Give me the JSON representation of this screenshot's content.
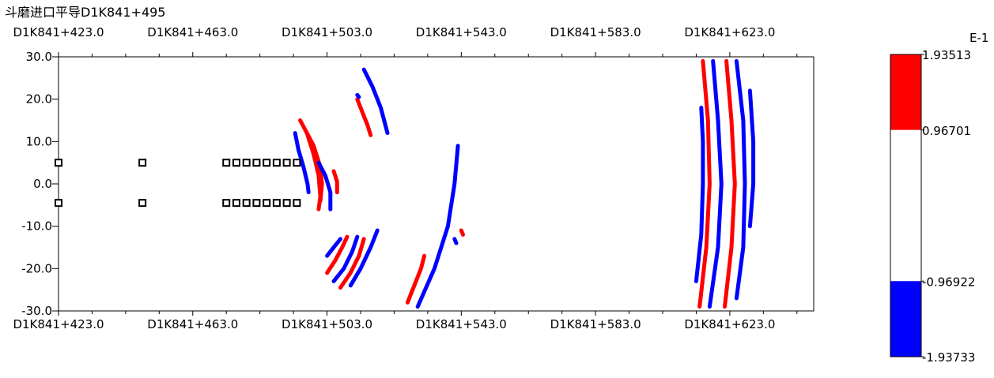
{
  "chart_data": {
    "type": "heatmap",
    "title": "斗磨进口平导D1K841+495",
    "x_tick_labels": [
      "D1K841+423.0",
      "D1K841+463.0",
      "D1K841+503.0",
      "D1K841+543.0",
      "D1K841+583.0",
      "D1K841+623.0"
    ],
    "x_ticks": [
      423,
      463,
      503,
      543,
      583,
      623
    ],
    "xlim": [
      423,
      648
    ],
    "y_ticks": [
      30,
      20,
      10,
      0,
      -10,
      -20,
      -30
    ],
    "y_tick_labels": [
      "30.0",
      "20.0",
      "10.0",
      "0.0",
      "-10.0",
      "-20.0",
      "-30.0"
    ],
    "ylim": [
      -30,
      30
    ],
    "colorbar": {
      "exponent_label": "E-1",
      "labels": [
        "1.93513",
        "0.96701",
        "-0.96922",
        "-1.93733"
      ],
      "segments": [
        {
          "from": 0.96701,
          "to": 1.93513,
          "color": "#ff0000"
        },
        {
          "from": -0.96922,
          "to": 0.96701,
          "color": "#ffffff"
        },
        {
          "from": -1.93733,
          "to": -0.96922,
          "color": "#0000ff"
        }
      ]
    },
    "colors": {
      "positive": "#ff0000",
      "negative": "#0000ff",
      "marker": "#000000"
    },
    "markers": [
      {
        "x": 423,
        "y": 5
      },
      {
        "x": 423,
        "y": -4.5
      },
      {
        "x": 448,
        "y": 5
      },
      {
        "x": 448,
        "y": -4.5
      },
      {
        "x": 473,
        "y": 5
      },
      {
        "x": 476,
        "y": 5
      },
      {
        "x": 479,
        "y": 5
      },
      {
        "x": 482,
        "y": 5
      },
      {
        "x": 485,
        "y": 5
      },
      {
        "x": 488,
        "y": 5
      },
      {
        "x": 491,
        "y": 5
      },
      {
        "x": 494,
        "y": 5
      },
      {
        "x": 473,
        "y": -4.5
      },
      {
        "x": 476,
        "y": -4.5
      },
      {
        "x": 479,
        "y": -4.5
      },
      {
        "x": 482,
        "y": -4.5
      },
      {
        "x": 485,
        "y": -4.5
      },
      {
        "x": 488,
        "y": -4.5
      },
      {
        "x": 491,
        "y": -4.5
      },
      {
        "x": 494,
        "y": -4.5
      }
    ],
    "arcs": [
      {
        "color": "#0000ff",
        "points": [
          [
            493.5,
            12
          ],
          [
            494.5,
            8
          ],
          [
            496,
            4
          ],
          [
            497.2,
            0
          ],
          [
            497.5,
            -2
          ]
        ]
      },
      {
        "color": "#ff0000",
        "points": [
          [
            495,
            15
          ],
          [
            497,
            12
          ],
          [
            499,
            7
          ],
          [
            500.5,
            2
          ],
          [
            501,
            -3
          ],
          [
            500.5,
            -6
          ]
        ]
      },
      {
        "color": "#ff0000",
        "points": [
          [
            497,
            12
          ],
          [
            499,
            9
          ],
          [
            501,
            4
          ],
          [
            501.5,
            0
          ],
          [
            501,
            -4
          ]
        ]
      },
      {
        "color": "#0000ff",
        "points": [
          [
            500.5,
            5
          ],
          [
            502.5,
            2
          ],
          [
            504,
            -2
          ],
          [
            504,
            -6
          ]
        ]
      },
      {
        "color": "#ff0000",
        "points": [
          [
            505,
            3
          ],
          [
            506,
            0.5
          ],
          [
            506,
            -2
          ]
        ]
      },
      {
        "color": "#0000ff",
        "points": [
          [
            503,
            -17
          ],
          [
            505,
            -15
          ],
          [
            507,
            -13
          ]
        ]
      },
      {
        "color": "#ff0000",
        "points": [
          [
            503,
            -21
          ],
          [
            505.5,
            -18
          ],
          [
            507.5,
            -15
          ],
          [
            509,
            -12.5
          ]
        ]
      },
      {
        "color": "#0000ff",
        "points": [
          [
            505,
            -23
          ],
          [
            508,
            -20
          ],
          [
            510.5,
            -16
          ],
          [
            512,
            -12.5
          ]
        ]
      },
      {
        "color": "#ff0000",
        "points": [
          [
            507,
            -24.5
          ],
          [
            510,
            -21
          ],
          [
            512.5,
            -17
          ],
          [
            514,
            -13
          ]
        ]
      },
      {
        "color": "#0000ff",
        "points": [
          [
            510,
            -24
          ],
          [
            513,
            -20
          ],
          [
            516,
            -15
          ],
          [
            518,
            -11
          ]
        ]
      },
      {
        "color": "#ff0000",
        "points": [
          [
            512,
            20
          ],
          [
            513.5,
            17
          ],
          [
            515,
            14
          ],
          [
            516,
            11.5
          ]
        ]
      },
      {
        "color": "#0000ff",
        "points": [
          [
            514,
            27
          ],
          [
            516.5,
            23
          ],
          [
            519,
            18
          ],
          [
            521,
            12
          ]
        ]
      },
      {
        "color": "#0000ff",
        "points": [
          [
            512,
            21
          ],
          [
            512.5,
            20.5
          ]
        ]
      },
      {
        "color": "#ff0000",
        "points": [
          [
            527,
            -28
          ],
          [
            529,
            -24
          ],
          [
            531,
            -20
          ],
          [
            532,
            -17
          ]
        ]
      },
      {
        "color": "#0000ff",
        "points": [
          [
            530,
            -29
          ],
          [
            535,
            -20
          ],
          [
            539,
            -10
          ],
          [
            541,
            0
          ],
          [
            542,
            9
          ]
        ]
      },
      {
        "color": "#ff0000",
        "points": [
          [
            543,
            -11
          ],
          [
            543.5,
            -12
          ]
        ]
      },
      {
        "color": "#0000ff",
        "points": [
          [
            541,
            -13
          ],
          [
            541.5,
            -14
          ]
        ]
      },
      {
        "color": "#0000ff",
        "points": [
          [
            613,
            -23
          ],
          [
            614.5,
            -12
          ],
          [
            615,
            0
          ],
          [
            615,
            10
          ],
          [
            614.5,
            18
          ]
        ]
      },
      {
        "color": "#ff0000",
        "points": [
          [
            614,
            -29
          ],
          [
            616,
            -15
          ],
          [
            617,
            0
          ],
          [
            616.5,
            15
          ],
          [
            615,
            29
          ]
        ]
      },
      {
        "color": "#0000ff",
        "points": [
          [
            617,
            -29
          ],
          [
            619.5,
            -15
          ],
          [
            620.5,
            0
          ],
          [
            619.5,
            15
          ],
          [
            618,
            29
          ]
        ]
      },
      {
        "color": "#ff0000",
        "points": [
          [
            621.5,
            -29
          ],
          [
            623.5,
            -15
          ],
          [
            624.5,
            0
          ],
          [
            623.5,
            15
          ],
          [
            622,
            29
          ]
        ]
      },
      {
        "color": "#0000ff",
        "points": [
          [
            625,
            -27
          ],
          [
            627,
            -15
          ],
          [
            627.5,
            0
          ],
          [
            627,
            15
          ],
          [
            625,
            29
          ]
        ]
      },
      {
        "color": "#0000ff",
        "points": [
          [
            629,
            -10
          ],
          [
            630,
            0
          ],
          [
            630,
            10
          ],
          [
            629,
            22
          ]
        ]
      }
    ]
  }
}
